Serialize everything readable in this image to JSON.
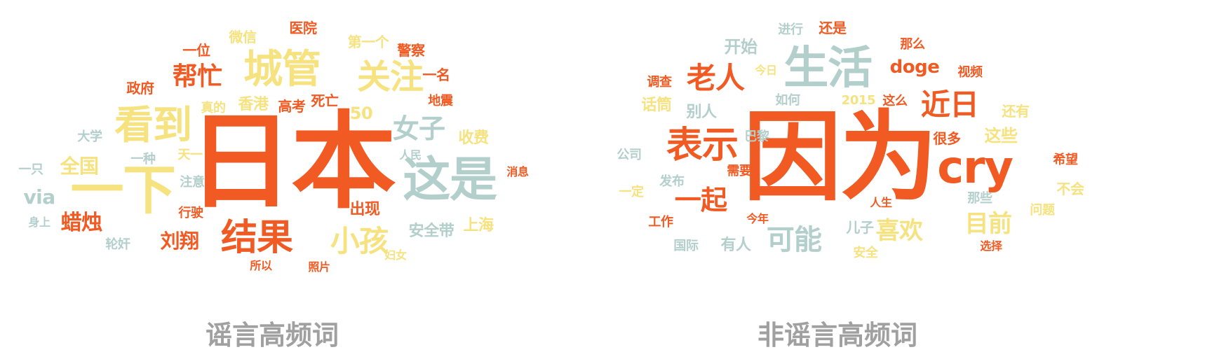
{
  "colors": {
    "orange": "#f15a22",
    "yellow": "#f6e27f",
    "teal": "#b3cfcc",
    "caption": "#a0a0a0"
  },
  "clouds": [
    {
      "caption": "谣言高频词",
      "words": [
        {
          "text": "日本",
          "color": "orange"
        },
        {
          "text": "城管",
          "color": "yellow"
        },
        {
          "text": "一下",
          "color": "yellow"
        },
        {
          "text": "这是",
          "color": "teal"
        },
        {
          "text": "看到",
          "color": "yellow"
        },
        {
          "text": "结果",
          "color": "orange"
        },
        {
          "text": "关注",
          "color": "yellow"
        },
        {
          "text": "帮忙",
          "color": "orange"
        },
        {
          "text": "女子",
          "color": "teal"
        },
        {
          "text": "小孩",
          "color": "yellow"
        },
        {
          "text": "蜡烛",
          "color": "orange"
        },
        {
          "text": "刘翔",
          "color": "orange"
        },
        {
          "text": "全国",
          "color": "yellow"
        },
        {
          "text": "via",
          "color": "teal"
        },
        {
          "text": "香港",
          "color": "yellow"
        },
        {
          "text": "高考",
          "color": "orange"
        },
        {
          "text": "死亡",
          "color": "orange"
        },
        {
          "text": "50",
          "color": "yellow"
        },
        {
          "text": "出现",
          "color": "orange"
        },
        {
          "text": "收费",
          "color": "yellow"
        },
        {
          "text": "安全带",
          "color": "teal"
        },
        {
          "text": "上海",
          "color": "yellow"
        },
        {
          "text": "微信",
          "color": "yellow"
        },
        {
          "text": "医院",
          "color": "orange"
        },
        {
          "text": "第一个",
          "color": "yellow"
        },
        {
          "text": "警察",
          "color": "orange"
        },
        {
          "text": "一位",
          "color": "orange"
        },
        {
          "text": "一名",
          "color": "orange"
        },
        {
          "text": "政府",
          "color": "orange"
        },
        {
          "text": "真的",
          "color": "yellow"
        },
        {
          "text": "地震",
          "color": "orange"
        },
        {
          "text": "大学",
          "color": "teal"
        },
        {
          "text": "一种",
          "color": "teal"
        },
        {
          "text": "天一",
          "color": "yellow"
        },
        {
          "text": "人民",
          "color": "teal"
        },
        {
          "text": "一只",
          "color": "teal"
        },
        {
          "text": "注意",
          "color": "teal"
        },
        {
          "text": "消息",
          "color": "orange"
        },
        {
          "text": "行驶",
          "color": "orange"
        },
        {
          "text": "身上",
          "color": "teal"
        },
        {
          "text": "轮奸",
          "color": "teal"
        },
        {
          "text": "所以",
          "color": "orange"
        },
        {
          "text": "照片",
          "color": "orange"
        },
        {
          "text": "妇女",
          "color": "yellow"
        }
      ]
    },
    {
      "caption": "非谣言高频词",
      "words": [
        {
          "text": "因为",
          "color": "orange"
        },
        {
          "text": "生活",
          "color": "teal"
        },
        {
          "text": "cry",
          "color": "orange"
        },
        {
          "text": "表示",
          "color": "orange"
        },
        {
          "text": "老人",
          "color": "orange"
        },
        {
          "text": "近日",
          "color": "orange"
        },
        {
          "text": "一起",
          "color": "orange"
        },
        {
          "text": "可能",
          "color": "teal"
        },
        {
          "text": "喜欢",
          "color": "yellow"
        },
        {
          "text": "目前",
          "color": "yellow"
        },
        {
          "text": "doge",
          "color": "orange"
        },
        {
          "text": "开始",
          "color": "teal"
        },
        {
          "text": "进行",
          "color": "teal"
        },
        {
          "text": "还是",
          "color": "orange"
        },
        {
          "text": "那么",
          "color": "orange"
        },
        {
          "text": "视频",
          "color": "orange"
        },
        {
          "text": "今日",
          "color": "yellow"
        },
        {
          "text": "调查",
          "color": "orange"
        },
        {
          "text": "话筒",
          "color": "yellow"
        },
        {
          "text": "别人",
          "color": "teal"
        },
        {
          "text": "如何",
          "color": "teal"
        },
        {
          "text": "2015",
          "color": "yellow"
        },
        {
          "text": "这么",
          "color": "orange"
        },
        {
          "text": "还有",
          "color": "yellow"
        },
        {
          "text": "很多",
          "color": "orange"
        },
        {
          "text": "这些",
          "color": "yellow"
        },
        {
          "text": "巴黎",
          "color": "teal"
        },
        {
          "text": "公司",
          "color": "teal"
        },
        {
          "text": "需要",
          "color": "orange"
        },
        {
          "text": "希望",
          "color": "orange"
        },
        {
          "text": "发布",
          "color": "teal"
        },
        {
          "text": "一定",
          "color": "yellow"
        },
        {
          "text": "不会",
          "color": "yellow"
        },
        {
          "text": "那些",
          "color": "teal"
        },
        {
          "text": "人生",
          "color": "orange"
        },
        {
          "text": "问题",
          "color": "yellow"
        },
        {
          "text": "工作",
          "color": "orange"
        },
        {
          "text": "今年",
          "color": "orange"
        },
        {
          "text": "儿子",
          "color": "teal"
        },
        {
          "text": "有人",
          "color": "teal"
        },
        {
          "text": "国际",
          "color": "teal"
        },
        {
          "text": "安全",
          "color": "yellow"
        },
        {
          "text": "选择",
          "color": "orange"
        }
      ]
    }
  ]
}
